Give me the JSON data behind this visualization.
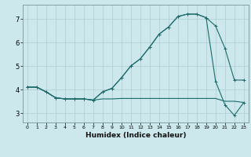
{
  "xlabel": "Humidex (Indice chaleur)",
  "bg_color": "#cce8ec",
  "grid_color": "#aacdd4",
  "line_color": "#1a6b6b",
  "xlim": [
    -0.5,
    23.5
  ],
  "ylim": [
    2.6,
    7.6
  ],
  "yticks": [
    3,
    4,
    5,
    6,
    7
  ],
  "xticks": [
    0,
    1,
    2,
    3,
    4,
    5,
    6,
    7,
    8,
    9,
    10,
    11,
    12,
    13,
    14,
    15,
    16,
    17,
    18,
    19,
    20,
    21,
    22,
    23
  ],
  "line1_x": [
    0,
    1,
    2,
    3,
    4,
    5,
    6,
    7,
    8,
    9,
    10,
    11,
    12,
    13,
    14,
    15,
    16,
    17,
    18,
    19,
    20,
    21,
    22,
    23
  ],
  "line1_y": [
    4.1,
    4.1,
    3.9,
    3.65,
    3.6,
    3.6,
    3.6,
    3.55,
    3.6,
    3.6,
    3.62,
    3.62,
    3.62,
    3.62,
    3.62,
    3.62,
    3.62,
    3.62,
    3.62,
    3.62,
    3.62,
    3.5,
    3.5,
    3.45
  ],
  "line2_x": [
    0,
    1,
    2,
    3,
    4,
    5,
    6,
    7,
    8,
    9,
    10,
    11,
    12,
    13,
    14,
    15,
    16,
    17,
    18,
    19,
    20,
    21,
    22,
    23
  ],
  "line2_y": [
    4.1,
    4.1,
    3.9,
    3.65,
    3.6,
    3.6,
    3.6,
    3.55,
    3.9,
    4.05,
    4.5,
    5.0,
    5.3,
    5.8,
    6.35,
    6.65,
    7.1,
    7.2,
    7.2,
    7.05,
    6.7,
    5.75,
    4.4,
    4.4
  ],
  "line3_x": [
    0,
    1,
    2,
    3,
    4,
    5,
    6,
    7,
    8,
    9,
    10,
    11,
    12,
    13,
    14,
    15,
    16,
    17,
    18,
    19,
    20,
    21,
    22,
    23
  ],
  "line3_y": [
    4.1,
    4.1,
    3.9,
    3.65,
    3.6,
    3.6,
    3.6,
    3.55,
    3.9,
    4.05,
    4.5,
    5.0,
    5.3,
    5.8,
    6.35,
    6.65,
    7.1,
    7.2,
    7.2,
    7.05,
    4.35,
    3.35,
    2.9,
    3.45
  ]
}
